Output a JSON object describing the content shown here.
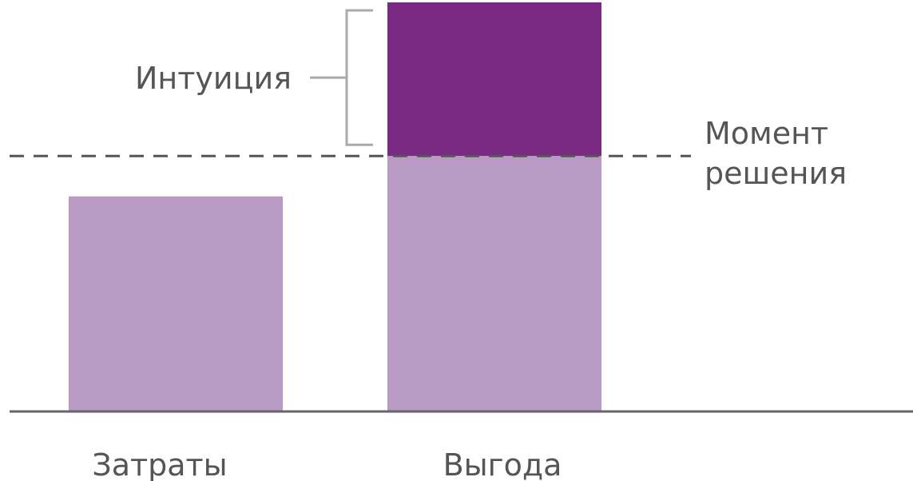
{
  "chart_data": {
    "type": "bar",
    "title": "",
    "xlabel": "",
    "ylabel": "",
    "ylim": [
      0,
      100
    ],
    "grid": false,
    "legend": "none",
    "categories": [
      "Затраты",
      "Выгода"
    ],
    "series": [
      {
        "values": [
          53,
          63
        ]
      },
      {
        "values": [
          0,
          38
        ]
      }
    ],
    "annotations": {
      "bracket_label": "Интуиция",
      "reference_line_label": [
        "Момент",
        "решения"
      ],
      "reference_line_value": 63
    },
    "colors": {
      "base": "#b99ac4",
      "top": "#7a2a82",
      "axis": "#666666",
      "text": "#555555",
      "bracket": "#aaaaaa",
      "dash": "#555555"
    }
  }
}
